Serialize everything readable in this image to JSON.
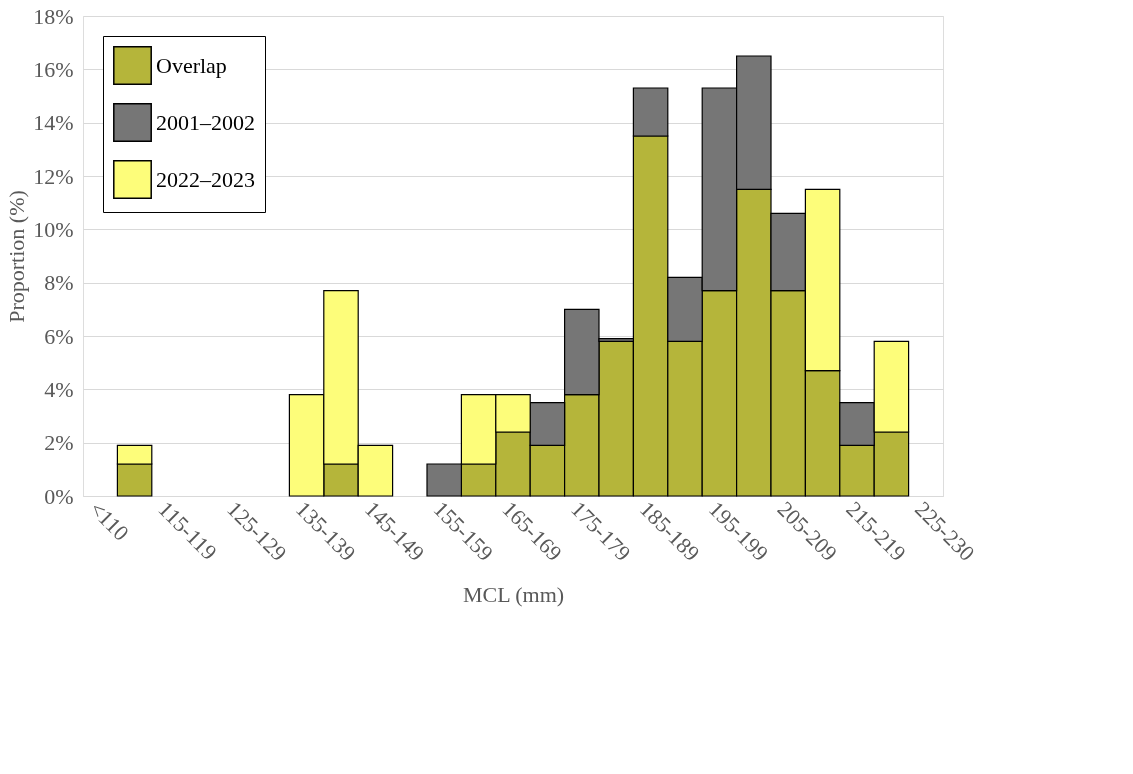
{
  "chart_data": {
    "type": "bar",
    "stacked": true,
    "xlabel": "MCL (mm)",
    "ylabel": "Proportion (%)",
    "categories": [
      "<110",
      null,
      "115-119",
      null,
      "125-129",
      null,
      "135-139",
      null,
      "145-149",
      null,
      "155-159",
      null,
      "165-169",
      null,
      "175-179",
      null,
      "185-189",
      null,
      "195-199",
      null,
      "205-209",
      null,
      "215-219",
      null,
      "225-230"
    ],
    "series": [
      {
        "name": "Overlap",
        "color": "#b5b53a",
        "values": [
          null,
          1.2,
          null,
          null,
          null,
          null,
          null,
          1.2,
          null,
          null,
          null,
          1.2,
          2.4,
          1.9,
          3.8,
          5.8,
          13.5,
          5.8,
          7.7,
          11.5,
          7.7,
          4.7,
          1.9,
          2.4,
          null
        ]
      },
      {
        "name": "2001–2002",
        "color": "#767676",
        "values": [
          null,
          null,
          null,
          null,
          null,
          null,
          null,
          null,
          null,
          null,
          1.2,
          null,
          null,
          1.6,
          3.2,
          0.1,
          1.8,
          2.4,
          7.6,
          5.0,
          2.9,
          null,
          1.6,
          null,
          null
        ]
      },
      {
        "name": "2022–2023",
        "color": "#fdfd7a",
        "values": [
          null,
          0.7,
          null,
          null,
          null,
          null,
          3.8,
          6.5,
          1.9,
          null,
          null,
          2.6,
          1.4,
          null,
          null,
          null,
          null,
          null,
          null,
          null,
          null,
          6.8,
          null,
          3.4,
          null
        ]
      }
    ],
    "ylim": [
      0,
      18
    ],
    "yticks": [
      {
        "value": 0,
        "label": "0%"
      },
      {
        "value": 2,
        "label": "2%"
      },
      {
        "value": 4,
        "label": "4%"
      },
      {
        "value": 6,
        "label": "6%"
      },
      {
        "value": 8,
        "label": "8%"
      },
      {
        "value": 10,
        "label": "10%"
      },
      {
        "value": 12,
        "label": "12%"
      },
      {
        "value": 14,
        "label": "14%"
      },
      {
        "value": 16,
        "label": "16%"
      },
      {
        "value": 18,
        "label": "18%"
      }
    ],
    "grid": "y",
    "legend": "top left"
  }
}
